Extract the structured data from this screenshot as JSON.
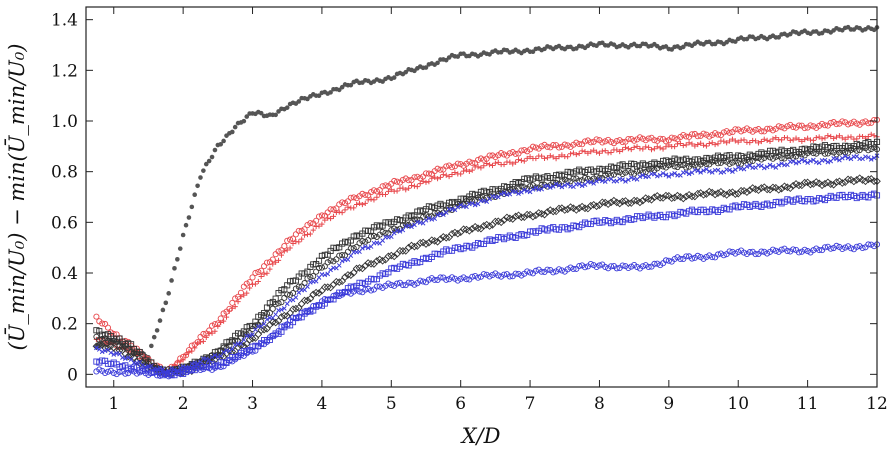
{
  "chart_data": {
    "type": "scatter",
    "xlabel": "X/D",
    "ylabel": "(Ū_min/U₀) − min(Ū_min/U₀)",
    "xlim": [
      0.6,
      12
    ],
    "ylim": [
      -0.05,
      1.45
    ],
    "xticks": [
      1,
      2,
      3,
      4,
      5,
      6,
      7,
      8,
      9,
      10,
      11,
      12
    ],
    "yticks": [
      0,
      0.2,
      0.4,
      0.6,
      0.8,
      1.0,
      1.2,
      1.4
    ],
    "ytick_labels": [
      "0",
      "0.2",
      "0.4",
      "0.6",
      "0.8",
      "1.0",
      "1.2",
      "1.4"
    ],
    "grid": false,
    "series": [
      {
        "color": "#555555",
        "marker": "filled-circle",
        "x": [
          0.75,
          1.0,
          1.25,
          1.5,
          1.75,
          2.0,
          2.25,
          2.5,
          2.75,
          3.0,
          3.25,
          3.5,
          4.0,
          4.5,
          5.0,
          5.5,
          6.0,
          7.0,
          8.0,
          8.5,
          9.0,
          10.0,
          11.0,
          12.0
        ],
        "y": [
          0.11,
          0.13,
          0.1,
          0.07,
          0.28,
          0.55,
          0.78,
          0.9,
          0.98,
          1.03,
          1.02,
          1.06,
          1.11,
          1.15,
          1.17,
          1.22,
          1.26,
          1.28,
          1.3,
          1.3,
          1.29,
          1.32,
          1.35,
          1.37
        ]
      },
      {
        "color": "#e8484c",
        "marker": "open-circle",
        "x": [
          0.75,
          1.0,
          1.25,
          1.5,
          1.75,
          2.0,
          2.5,
          3.0,
          3.5,
          4.0,
          4.5,
          5.0,
          5.5,
          6.0,
          6.5,
          7.0,
          8.0,
          9.0,
          10.0,
          11.0,
          12.0
        ],
        "y": [
          0.22,
          0.16,
          0.12,
          0.05,
          0.01,
          0.07,
          0.21,
          0.38,
          0.52,
          0.63,
          0.7,
          0.75,
          0.79,
          0.83,
          0.86,
          0.89,
          0.92,
          0.93,
          0.96,
          0.98,
          1.0
        ]
      },
      {
        "color": "#e8484c",
        "marker": "plus",
        "x": [
          0.75,
          1.0,
          1.25,
          1.5,
          1.75,
          2.0,
          2.5,
          3.0,
          3.5,
          4.0,
          4.5,
          5.0,
          5.5,
          6.0,
          6.5,
          7.0,
          8.0,
          9.0,
          10.0,
          11.0,
          12.0
        ],
        "y": [
          0.14,
          0.12,
          0.09,
          0.04,
          0.01,
          0.06,
          0.19,
          0.35,
          0.49,
          0.6,
          0.67,
          0.72,
          0.76,
          0.8,
          0.83,
          0.85,
          0.88,
          0.9,
          0.92,
          0.93,
          0.94
        ]
      },
      {
        "color": "#333333",
        "marker": "open-square",
        "x": [
          0.75,
          1.0,
          1.25,
          1.5,
          1.75,
          2.0,
          2.5,
          3.0,
          3.5,
          4.0,
          4.5,
          5.0,
          5.5,
          6.0,
          6.5,
          7.0,
          8.0,
          9.0,
          10.0,
          11.0,
          12.0
        ],
        "y": [
          0.17,
          0.15,
          0.11,
          0.05,
          0.01,
          0.02,
          0.09,
          0.2,
          0.35,
          0.46,
          0.55,
          0.6,
          0.65,
          0.69,
          0.73,
          0.77,
          0.81,
          0.84,
          0.86,
          0.89,
          0.91
        ]
      },
      {
        "color": "#333333",
        "marker": "open-circle",
        "x": [
          0.75,
          1.0,
          1.25,
          1.5,
          1.75,
          2.0,
          2.5,
          3.0,
          3.5,
          4.0,
          4.5,
          5.0,
          5.5,
          6.0,
          6.5,
          7.0,
          8.0,
          9.0,
          10.0,
          11.0,
          12.0
        ],
        "y": [
          0.15,
          0.13,
          0.09,
          0.04,
          0.01,
          0.02,
          0.08,
          0.18,
          0.31,
          0.42,
          0.51,
          0.57,
          0.62,
          0.67,
          0.71,
          0.74,
          0.78,
          0.82,
          0.84,
          0.87,
          0.89
        ]
      },
      {
        "color": "#333333",
        "marker": "open-diamond",
        "x": [
          0.75,
          1.0,
          1.25,
          1.5,
          1.75,
          2.0,
          2.5,
          3.0,
          3.5,
          4.0,
          4.5,
          5.0,
          5.5,
          6.0,
          6.5,
          7.0,
          8.0,
          9.0,
          10.0,
          11.0,
          12.0
        ],
        "y": [
          0.12,
          0.1,
          0.07,
          0.03,
          0.0,
          0.01,
          0.06,
          0.14,
          0.24,
          0.33,
          0.41,
          0.47,
          0.52,
          0.56,
          0.6,
          0.63,
          0.67,
          0.7,
          0.72,
          0.75,
          0.77
        ]
      },
      {
        "color": "#3b3bd9",
        "marker": "cross",
        "x": [
          0.75,
          1.0,
          1.25,
          1.5,
          1.75,
          2.0,
          2.5,
          3.0,
          3.5,
          4.0,
          4.5,
          5.0,
          5.5,
          6.0,
          6.5,
          7.0,
          8.0,
          9.0,
          10.0,
          11.0,
          12.0
        ],
        "y": [
          0.1,
          0.08,
          0.06,
          0.03,
          0.01,
          0.03,
          0.07,
          0.16,
          0.28,
          0.39,
          0.48,
          0.55,
          0.61,
          0.66,
          0.7,
          0.73,
          0.76,
          0.79,
          0.81,
          0.84,
          0.86
        ]
      },
      {
        "color": "#3b3bd9",
        "marker": "open-square",
        "x": [
          0.75,
          1.0,
          1.25,
          1.5,
          1.75,
          2.0,
          2.5,
          3.0,
          3.5,
          4.0,
          4.5,
          5.0,
          5.5,
          6.0,
          6.5,
          7.0,
          8.0,
          9.0,
          10.0,
          11.0,
          12.0
        ],
        "y": [
          0.05,
          0.04,
          0.03,
          0.01,
          0.0,
          0.01,
          0.04,
          0.1,
          0.19,
          0.28,
          0.35,
          0.41,
          0.46,
          0.5,
          0.53,
          0.56,
          0.6,
          0.63,
          0.66,
          0.69,
          0.71
        ]
      },
      {
        "color": "#3b3bd9",
        "marker": "open-circle",
        "x": [
          0.75,
          1.0,
          1.25,
          1.5,
          1.75,
          2.0,
          2.5,
          3.0,
          3.5,
          4.0,
          4.5,
          5.0,
          5.5,
          6.0,
          6.5,
          7.0,
          8.0,
          8.6,
          9.0,
          10.0,
          11.0,
          12.0
        ],
        "y": [
          0.01,
          0.01,
          0.01,
          0.0,
          0.0,
          0.01,
          0.03,
          0.09,
          0.2,
          0.29,
          0.33,
          0.35,
          0.37,
          0.38,
          0.39,
          0.4,
          0.43,
          0.42,
          0.45,
          0.48,
          0.49,
          0.51
        ]
      }
    ]
  }
}
